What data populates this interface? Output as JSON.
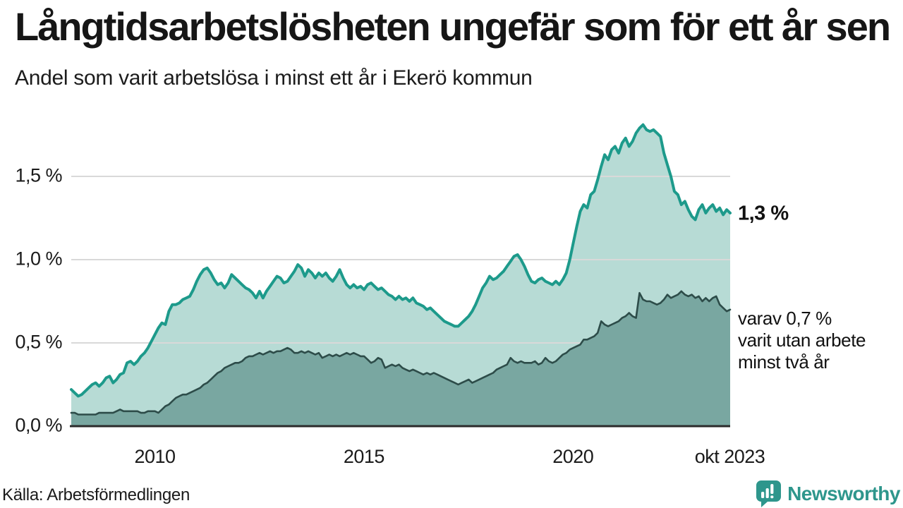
{
  "header": {
    "title": "Långtidsarbetslösheten ungefär som för ett år sen",
    "subtitle": "Andel som varit arbetslösa i minst ett år i Ekerö kommun"
  },
  "chart_data": {
    "type": "area",
    "title": "Långtidsarbetslösheten ungefär som för ett år sen",
    "subtitle": "Andel som varit arbetslösa i minst ett år i Ekerö kommun",
    "x_start": "2008-01",
    "x_end": "2023-10",
    "x_interval": "monthly",
    "ylim": [
      0,
      1.9
    ],
    "grid": true,
    "yticks": [
      {
        "label": "1,5 %",
        "value": 1.5
      },
      {
        "label": "1,0 %",
        "value": 1.0
      },
      {
        "label": "0,5 %",
        "value": 0.5
      },
      {
        "label": "0,0 %",
        "value": 0.0
      }
    ],
    "xticks": [
      {
        "label": "2010",
        "t": 2010.0
      },
      {
        "label": "2015",
        "t": 2015.0
      },
      {
        "label": "2020",
        "t": 2020.0
      },
      {
        "label": "okt 2023",
        "t": 2023.75
      }
    ],
    "series": [
      {
        "name": "Andel arbetslösa minst ett år",
        "line_color": "#1d9a8b",
        "fill_color": "#b7dbd5",
        "end_value_label": "1,3 %",
        "values": [
          0.22,
          0.2,
          0.18,
          0.19,
          0.21,
          0.23,
          0.25,
          0.26,
          0.24,
          0.26,
          0.29,
          0.3,
          0.26,
          0.28,
          0.31,
          0.32,
          0.38,
          0.39,
          0.37,
          0.39,
          0.42,
          0.44,
          0.47,
          0.51,
          0.55,
          0.59,
          0.62,
          0.61,
          0.69,
          0.73,
          0.73,
          0.74,
          0.76,
          0.77,
          0.78,
          0.82,
          0.87,
          0.91,
          0.94,
          0.95,
          0.92,
          0.88,
          0.85,
          0.86,
          0.83,
          0.86,
          0.91,
          0.89,
          0.87,
          0.85,
          0.83,
          0.82,
          0.8,
          0.77,
          0.81,
          0.77,
          0.81,
          0.84,
          0.87,
          0.9,
          0.89,
          0.86,
          0.87,
          0.9,
          0.93,
          0.97,
          0.95,
          0.9,
          0.94,
          0.92,
          0.89,
          0.92,
          0.9,
          0.92,
          0.89,
          0.87,
          0.9,
          0.94,
          0.89,
          0.85,
          0.83,
          0.85,
          0.83,
          0.84,
          0.82,
          0.85,
          0.86,
          0.84,
          0.82,
          0.83,
          0.81,
          0.79,
          0.78,
          0.76,
          0.78,
          0.76,
          0.77,
          0.75,
          0.77,
          0.74,
          0.73,
          0.72,
          0.7,
          0.71,
          0.69,
          0.67,
          0.65,
          0.63,
          0.62,
          0.61,
          0.6,
          0.6,
          0.62,
          0.64,
          0.66,
          0.69,
          0.73,
          0.78,
          0.83,
          0.86,
          0.9,
          0.88,
          0.89,
          0.91,
          0.93,
          0.96,
          0.99,
          1.02,
          1.03,
          1.0,
          0.96,
          0.91,
          0.87,
          0.86,
          0.88,
          0.89,
          0.87,
          0.86,
          0.85,
          0.87,
          0.85,
          0.88,
          0.92,
          1.0,
          1.1,
          1.2,
          1.29,
          1.33,
          1.31,
          1.39,
          1.41,
          1.48,
          1.56,
          1.63,
          1.6,
          1.66,
          1.68,
          1.64,
          1.7,
          1.73,
          1.68,
          1.71,
          1.76,
          1.79,
          1.81,
          1.78,
          1.77,
          1.78,
          1.76,
          1.74,
          1.64,
          1.57,
          1.5,
          1.41,
          1.39,
          1.33,
          1.35,
          1.3,
          1.26,
          1.24,
          1.3,
          1.33,
          1.28,
          1.31,
          1.33,
          1.29,
          1.31,
          1.27,
          1.3,
          1.28
        ]
      },
      {
        "name": "Andel arbetslösa minst två år",
        "line_color": "#2d4c49",
        "fill_color": "#79a7a1",
        "end_value_label": "0,7 %",
        "values": [
          0.08,
          0.08,
          0.07,
          0.07,
          0.07,
          0.07,
          0.07,
          0.07,
          0.08,
          0.08,
          0.08,
          0.08,
          0.08,
          0.09,
          0.1,
          0.09,
          0.09,
          0.09,
          0.09,
          0.09,
          0.08,
          0.08,
          0.09,
          0.09,
          0.09,
          0.08,
          0.1,
          0.12,
          0.13,
          0.15,
          0.17,
          0.18,
          0.19,
          0.19,
          0.2,
          0.21,
          0.22,
          0.23,
          0.25,
          0.26,
          0.28,
          0.3,
          0.32,
          0.33,
          0.35,
          0.36,
          0.37,
          0.38,
          0.38,
          0.39,
          0.41,
          0.42,
          0.42,
          0.43,
          0.44,
          0.43,
          0.44,
          0.45,
          0.44,
          0.45,
          0.45,
          0.46,
          0.47,
          0.46,
          0.44,
          0.44,
          0.45,
          0.44,
          0.45,
          0.44,
          0.43,
          0.44,
          0.41,
          0.42,
          0.43,
          0.42,
          0.43,
          0.42,
          0.43,
          0.44,
          0.43,
          0.44,
          0.43,
          0.42,
          0.42,
          0.4,
          0.38,
          0.39,
          0.41,
          0.4,
          0.35,
          0.36,
          0.37,
          0.36,
          0.37,
          0.35,
          0.34,
          0.33,
          0.34,
          0.33,
          0.32,
          0.31,
          0.32,
          0.31,
          0.32,
          0.31,
          0.3,
          0.29,
          0.28,
          0.27,
          0.26,
          0.25,
          0.26,
          0.27,
          0.28,
          0.26,
          0.27,
          0.28,
          0.29,
          0.3,
          0.31,
          0.32,
          0.34,
          0.35,
          0.36,
          0.37,
          0.41,
          0.39,
          0.38,
          0.39,
          0.38,
          0.38,
          0.38,
          0.39,
          0.37,
          0.38,
          0.41,
          0.39,
          0.38,
          0.39,
          0.41,
          0.43,
          0.44,
          0.46,
          0.47,
          0.48,
          0.49,
          0.52,
          0.52,
          0.53,
          0.54,
          0.56,
          0.63,
          0.61,
          0.6,
          0.61,
          0.62,
          0.63,
          0.65,
          0.66,
          0.68,
          0.66,
          0.65,
          0.8,
          0.76,
          0.75,
          0.75,
          0.74,
          0.73,
          0.74,
          0.76,
          0.79,
          0.77,
          0.78,
          0.79,
          0.81,
          0.79,
          0.78,
          0.79,
          0.77,
          0.78,
          0.75,
          0.77,
          0.75,
          0.77,
          0.78,
          0.73,
          0.71,
          0.69,
          0.7
        ]
      }
    ],
    "annotations": [
      {
        "text": "1,3 %"
      },
      {
        "lines": [
          "varav 0,7 %",
          "varit utan arbete",
          "minst två år"
        ]
      }
    ],
    "legend_position": "none",
    "colors": {
      "grid": "#d9d9d9",
      "axis": "#2b2b2b",
      "upper_line": "#1d9a8b",
      "upper_fill": "#b7dbd5",
      "lower_line": "#2d4c49",
      "lower_fill": "#79a7a1"
    }
  },
  "footer": {
    "source": "Källa: Arbetsförmedlingen",
    "brand": "Newsworthy",
    "brand_color": "#2e968c"
  }
}
